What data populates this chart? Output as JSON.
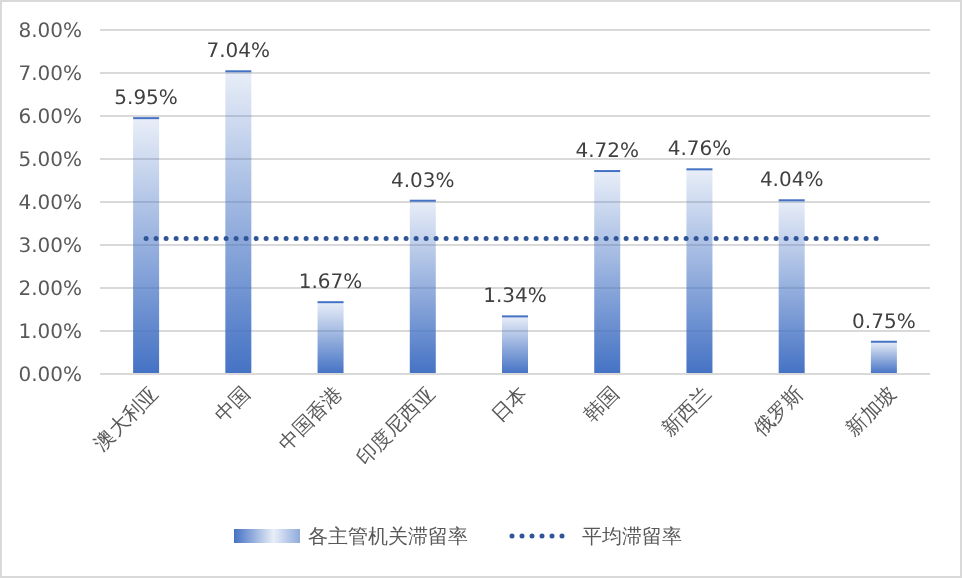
{
  "chart_data": {
    "type": "bar",
    "categories": [
      "澳大利亚",
      "中国",
      "中国香港",
      "印度尼西亚",
      "日本",
      "韩国",
      "新西兰",
      "俄罗斯",
      "新加坡"
    ],
    "series": [
      {
        "name": "各主管机关滞留率",
        "color": "#4472c4",
        "values": [
          5.95,
          7.04,
          1.67,
          4.03,
          1.34,
          4.72,
          4.76,
          4.04,
          0.75
        ],
        "value_labels": [
          "5.95%",
          "7.04%",
          "1.67%",
          "4.03%",
          "1.34%",
          "4.72%",
          "4.76%",
          "4.04%",
          "0.75%"
        ]
      },
      {
        "name": "平均滞留率",
        "type": "line",
        "color": "#2f5597",
        "line_style": "dotted",
        "values": [
          3.15,
          3.15,
          3.15,
          3.15,
          3.15,
          3.15,
          3.15,
          3.15,
          3.15
        ]
      }
    ],
    "ylim": [
      0,
      8
    ],
    "yticks": [
      {
        "value": 0,
        "label": "0.00%"
      },
      {
        "value": 1,
        "label": "1.00%"
      },
      {
        "value": 2,
        "label": "2.00%"
      },
      {
        "value": 3,
        "label": "3.00%"
      },
      {
        "value": 4,
        "label": "4.00%"
      },
      {
        "value": 5,
        "label": "5.00%"
      },
      {
        "value": 6,
        "label": "6.00%"
      },
      {
        "value": 7,
        "label": "7.00%"
      },
      {
        "value": 8,
        "label": "8.00%"
      }
    ],
    "grid": "y",
    "legend": "bottom"
  }
}
